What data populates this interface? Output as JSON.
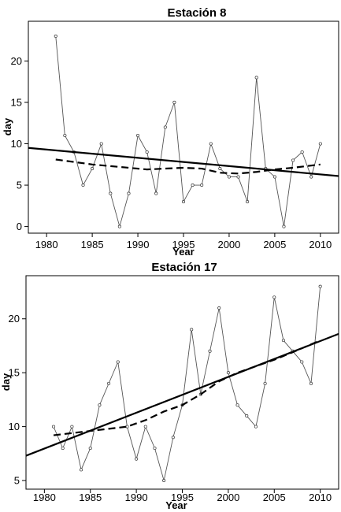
{
  "chart_data": [
    {
      "type": "line",
      "title": "Estación 8",
      "xlabel": "Year",
      "ylabel": "day",
      "xlim": [
        1978,
        2012
      ],
      "ylim": [
        -0.8,
        24.8
      ],
      "xticks": [
        "1980",
        "1985",
        "1990",
        "1995",
        "2000",
        "2005",
        "2010"
      ],
      "yticks": [
        "0",
        "5",
        "10",
        "15",
        "20"
      ],
      "x": [
        1981,
        1982,
        1983,
        1984,
        1985,
        1986,
        1987,
        1988,
        1989,
        1990,
        1991,
        1992,
        1993,
        1994,
        1995,
        1996,
        1997,
        1998,
        1999,
        2000,
        2001,
        2002,
        2003,
        2004,
        2005,
        2006,
        2007,
        2008,
        2009,
        2010
      ],
      "series": [
        {
          "style": "thin line with open circles",
          "color": "#555555",
          "values": [
            23,
            11,
            9,
            5,
            7,
            10,
            4,
            0,
            4,
            11,
            9,
            4,
            12,
            15,
            3,
            5,
            5,
            10,
            7,
            6,
            6,
            3,
            18,
            7,
            6,
            0,
            8,
            9,
            6,
            10
          ]
        },
        {
          "style": "thick solid line",
          "color": "#000000",
          "x": [
            1978,
            2012
          ],
          "values": [
            9.5,
            6.1
          ]
        },
        {
          "style": "thick dashed line",
          "color": "#000000",
          "x": [
            1981,
            1983,
            1985,
            1987,
            1989,
            1991,
            1993,
            1995,
            1997,
            1999,
            2001,
            2003,
            2005,
            2007,
            2010
          ],
          "values": [
            8.1,
            7.8,
            7.5,
            7.3,
            7.1,
            6.9,
            7.0,
            7.1,
            7.0,
            6.5,
            6.4,
            6.6,
            6.9,
            7.1,
            7.5
          ]
        }
      ]
    },
    {
      "type": "line",
      "title": "Estación 17",
      "xlabel": "Year",
      "ylabel": "day",
      "xlim": [
        1978,
        2012
      ],
      "ylim": [
        4.2,
        24.0
      ],
      "xticks": [
        "1980",
        "1985",
        "1990",
        "1995",
        "2000",
        "2005",
        "2010"
      ],
      "yticks": [
        "5",
        "10",
        "15",
        "20"
      ],
      "x": [
        1981,
        1982,
        1983,
        1984,
        1985,
        1986,
        1987,
        1988,
        1989,
        1990,
        1991,
        1992,
        1993,
        1994,
        1995,
        1996,
        1997,
        1998,
        1999,
        2000,
        2001,
        2002,
        2003,
        2004,
        2005,
        2006,
        2007,
        2008,
        2009,
        2010
      ],
      "series": [
        {
          "style": "thin line with open circles",
          "color": "#555555",
          "values": [
            10,
            8,
            10,
            6,
            8,
            12,
            14,
            16,
            10,
            7,
            10,
            8,
            5,
            9,
            12,
            19,
            13,
            17,
            21,
            15,
            12,
            11,
            10,
            14,
            22,
            18,
            17,
            16,
            14,
            23
          ]
        },
        {
          "style": "thick solid line",
          "color": "#000000",
          "x": [
            1978,
            2012
          ],
          "values": [
            7.3,
            18.6
          ]
        },
        {
          "style": "thick dashed line",
          "color": "#000000",
          "x": [
            1981,
            1983,
            1985,
            1987,
            1989,
            1991,
            1993,
            1995,
            1997,
            1999,
            2001,
            2003,
            2005,
            2007,
            2010
          ],
          "values": [
            9.2,
            9.4,
            9.6,
            9.8,
            10.0,
            10.6,
            11.4,
            12.0,
            13.0,
            14.2,
            15.0,
            15.6,
            16.2,
            16.9,
            18.0
          ]
        }
      ]
    }
  ]
}
